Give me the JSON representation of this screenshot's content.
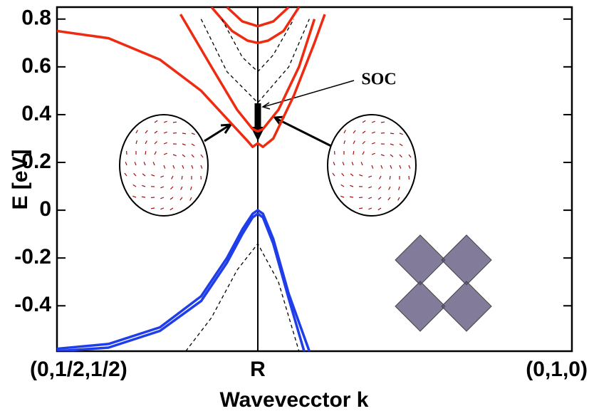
{
  "chart_data": {
    "type": "line",
    "ylabel": "E [eV]",
    "xlabel": "Wavevecctor k",
    "annotations": [
      "SOC"
    ],
    "xlim": [
      0,
      1
    ],
    "xticks": [
      {
        "value": 0,
        "label": "(0,1/2,1/2)"
      },
      {
        "value": 0.39,
        "label": "R"
      },
      {
        "value": 1,
        "label": "(0,1,0)"
      }
    ],
    "ylim": [
      -0.59,
      0.85
    ],
    "yticks": [
      0.8,
      0.6,
      0.4,
      0.2,
      0,
      -0.2,
      -0.4
    ],
    "series": [
      {
        "color": "#ee2a10",
        "dashed": false,
        "x": [
          0,
          0.1,
          0.2,
          0.28,
          0.34,
          0.37,
          0.38,
          0.39,
          0.4,
          0.42,
          0.46,
          0.5,
          0.52
        ],
        "values": [
          0.75,
          0.72,
          0.63,
          0.5,
          0.36,
          0.29,
          0.265,
          0.28,
          0.265,
          0.3,
          0.48,
          0.7,
          0.82
        ]
      },
      {
        "color": "#ee2a10",
        "dashed": false,
        "x": [
          0.24,
          0.3,
          0.35,
          0.38,
          0.39,
          0.4,
          0.43,
          0.47,
          0.5
        ],
        "values": [
          0.82,
          0.6,
          0.42,
          0.34,
          0.33,
          0.34,
          0.42,
          0.6,
          0.8
        ]
      },
      {
        "color": "#ee2a10",
        "dashed": false,
        "x": [
          0.3,
          0.34,
          0.37,
          0.39,
          0.41,
          0.44,
          0.47
        ],
        "values": [
          0.85,
          0.75,
          0.71,
          0.7,
          0.71,
          0.75,
          0.85
        ]
      },
      {
        "color": "#ee2a10",
        "dashed": false,
        "x": [
          0.33,
          0.36,
          0.39,
          0.42,
          0.45
        ],
        "values": [
          0.85,
          0.79,
          0.77,
          0.79,
          0.85
        ]
      },
      {
        "color": "#1f3de8",
        "dashed": false,
        "x": [
          0,
          0.1,
          0.2,
          0.28,
          0.33,
          0.36,
          0.38,
          0.39,
          0.4,
          0.42,
          0.45,
          0.49
        ],
        "values": [
          -0.58,
          -0.56,
          -0.49,
          -0.36,
          -0.2,
          -0.08,
          -0.015,
          0,
          -0.015,
          -0.12,
          -0.35,
          -0.59
        ]
      },
      {
        "color": "#1f3de8",
        "dashed": false,
        "x": [
          0,
          0.1,
          0.2,
          0.28,
          0.33,
          0.36,
          0.38,
          0.39,
          0.4,
          0.42,
          0.45,
          0.48
        ],
        "values": [
          -0.59,
          -0.575,
          -0.505,
          -0.38,
          -0.22,
          -0.1,
          -0.03,
          -0.015,
          -0.03,
          -0.14,
          -0.37,
          -0.59
        ]
      },
      {
        "color": "#000000",
        "dashed": true,
        "x": [
          0.25,
          0.3,
          0.35,
          0.39,
          0.43,
          0.47
        ],
        "values": [
          -0.59,
          -0.45,
          -0.25,
          -0.14,
          -0.3,
          -0.59
        ]
      },
      {
        "color": "#000000",
        "dashed": true,
        "x": [
          0.28,
          0.33,
          0.39,
          0.45,
          0.49
        ],
        "values": [
          0.8,
          0.58,
          0.45,
          0.6,
          0.8
        ]
      },
      {
        "color": "#000000",
        "dashed": true,
        "x": [
          0.32,
          0.36,
          0.39,
          0.42,
          0.46
        ],
        "values": [
          0.8,
          0.64,
          0.58,
          0.65,
          0.8
        ]
      }
    ]
  }
}
